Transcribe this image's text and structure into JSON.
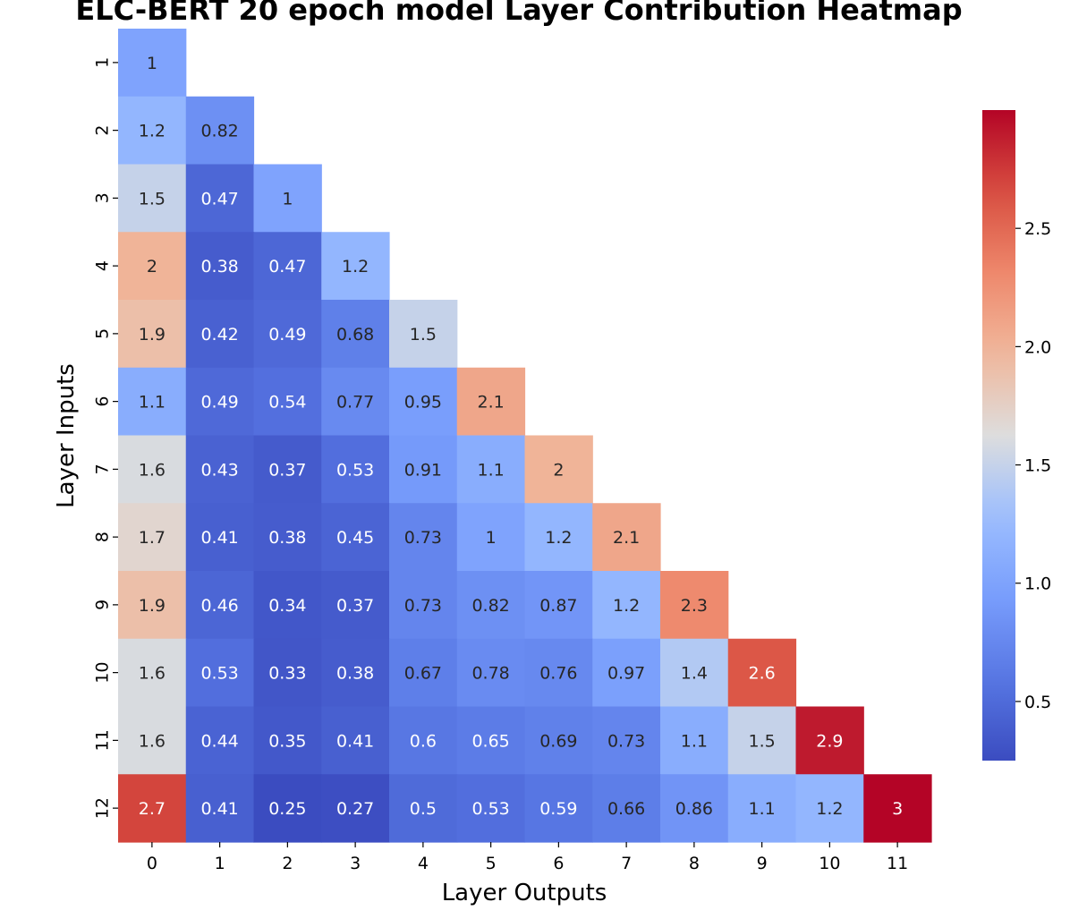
{
  "chart_data": {
    "type": "heatmap",
    "title": "ELC-BERT 20 epoch model Layer Contribution Heatmap",
    "xlabel": "Layer Outputs",
    "ylabel": "Layer Inputs",
    "x_categories": [
      "0",
      "1",
      "2",
      "3",
      "4",
      "5",
      "6",
      "7",
      "8",
      "9",
      "10",
      "11"
    ],
    "y_categories": [
      "1",
      "2",
      "3",
      "4",
      "5",
      "6",
      "7",
      "8",
      "9",
      "10",
      "11",
      "12"
    ],
    "values": [
      [
        1
      ],
      [
        1.2,
        0.82
      ],
      [
        1.5,
        0.47,
        1
      ],
      [
        2,
        0.38,
        0.47,
        1.2
      ],
      [
        1.9,
        0.42,
        0.49,
        0.68,
        1.5
      ],
      [
        1.1,
        0.49,
        0.54,
        0.77,
        0.95,
        2.1
      ],
      [
        1.6,
        0.43,
        0.37,
        0.53,
        0.91,
        1.1,
        2
      ],
      [
        1.7,
        0.41,
        0.38,
        0.45,
        0.73,
        1,
        1.2,
        2.1
      ],
      [
        1.9,
        0.46,
        0.34,
        0.37,
        0.73,
        0.82,
        0.87,
        1.2,
        2.3
      ],
      [
        1.6,
        0.53,
        0.33,
        0.38,
        0.67,
        0.78,
        0.76,
        0.97,
        1.4,
        2.6
      ],
      [
        1.6,
        0.44,
        0.35,
        0.41,
        0.6,
        0.65,
        0.69,
        0.73,
        1.1,
        1.5,
        2.9
      ],
      [
        2.7,
        0.41,
        0.25,
        0.27,
        0.5,
        0.53,
        0.59,
        0.66,
        0.86,
        1.1,
        1.2,
        3
      ]
    ],
    "colormap": "coolwarm",
    "vmin": 0.25,
    "vmax": 3.0,
    "colorbar_ticks": [
      "0.5",
      "1.0",
      "1.5",
      "2.0",
      "2.5"
    ],
    "colors": {
      "low": "#3b4cc0",
      "mid": "#dddddd",
      "high": "#b40426"
    }
  }
}
